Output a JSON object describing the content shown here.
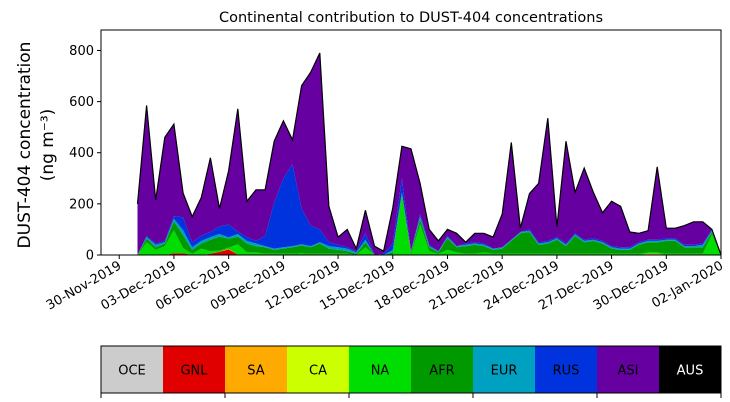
{
  "chart_data": {
    "type": "area",
    "title": "Continental contribution to DUST-404 concentrations",
    "ylabel_line1": "DUST-404 concentration",
    "ylabel_line2": "(ng m⁻³)",
    "ylim": [
      0,
      880
    ],
    "xlim": [
      "2019-11-29",
      "2020-01-02"
    ],
    "yticks": [
      0,
      200,
      400,
      600,
      800
    ],
    "xticks": [
      "30-Nov-2019",
      "03-Dec-2019",
      "06-Dec-2019",
      "09-Dec-2019",
      "12-Dec-2019",
      "15-Dec-2019",
      "18-Dec-2019",
      "21-Dec-2019",
      "24-Dec-2019",
      "27-Dec-2019",
      "30-Dec-2019",
      "02-Jan-2020"
    ],
    "x": [
      "2019-12-01",
      "2019-12-01 12:00",
      "2019-12-02",
      "2019-12-02 12:00",
      "2019-12-03",
      "2019-12-03 12:00",
      "2019-12-04",
      "2019-12-04 12:00",
      "2019-12-05",
      "2019-12-05 12:00",
      "2019-12-06",
      "2019-12-06 12:00",
      "2019-12-07",
      "2019-12-07 12:00",
      "2019-12-08",
      "2019-12-08 12:00",
      "2019-12-09",
      "2019-12-09 12:00",
      "2019-12-10",
      "2019-12-10 12:00",
      "2019-12-11",
      "2019-12-11 12:00",
      "2019-12-12",
      "2019-12-12 12:00",
      "2019-12-13",
      "2019-12-13 12:00",
      "2019-12-14",
      "2019-12-14 12:00",
      "2019-12-15",
      "2019-12-15 12:00",
      "2019-12-16",
      "2019-12-16 12:00",
      "2019-12-17",
      "2019-12-17 12:00",
      "2019-12-18",
      "2019-12-18 12:00",
      "2019-12-19",
      "2019-12-19 12:00",
      "2019-12-20",
      "2019-12-20 12:00",
      "2019-12-21",
      "2019-12-21 12:00",
      "2019-12-22",
      "2019-12-22 12:00",
      "2019-12-23",
      "2019-12-23 12:00",
      "2019-12-24",
      "2019-12-24 12:00",
      "2019-12-25",
      "2019-12-25 12:00",
      "2019-12-26",
      "2019-12-26 12:00",
      "2019-12-27",
      "2019-12-27 12:00",
      "2019-12-28",
      "2019-12-28 12:00",
      "2019-12-29",
      "2019-12-29 12:00",
      "2019-12-30",
      "2019-12-30 12:00",
      "2019-12-31",
      "2019-12-31 12:00",
      "2020-01-01",
      "2020-01-01 12:00",
      "2020-01-02"
    ],
    "series": [
      {
        "name": "OCE",
        "color": "#cccccc",
        "values": [
          0,
          0,
          0,
          0,
          2,
          2,
          0,
          0,
          0,
          2,
          2,
          0,
          0,
          0,
          0,
          0,
          0,
          0,
          2,
          0,
          0,
          0,
          0,
          0,
          0,
          0,
          0,
          0,
          0,
          0,
          0,
          0,
          0,
          0,
          0,
          0,
          0,
          0,
          0,
          0,
          0,
          0,
          0,
          0,
          0,
          0,
          0,
          0,
          0,
          0,
          0,
          0,
          0,
          0,
          0,
          0,
          0,
          0,
          0,
          0,
          0,
          0,
          0,
          0,
          0
        ]
      },
      {
        "name": "GNL",
        "color": "#e00000",
        "values": [
          0,
          0,
          0,
          0,
          5,
          5,
          0,
          0,
          5,
          10,
          20,
          2,
          0,
          0,
          0,
          0,
          0,
          0,
          0,
          0,
          0,
          0,
          0,
          0,
          0,
          0,
          0,
          0,
          0,
          0,
          0,
          0,
          0,
          0,
          0,
          0,
          0,
          0,
          0,
          0,
          0,
          0,
          0,
          0,
          0,
          0,
          0,
          0,
          0,
          0,
          0,
          0,
          0,
          0,
          0,
          0,
          3,
          3,
          0,
          0,
          0,
          0,
          0,
          0,
          0
        ]
      },
      {
        "name": "SA",
        "color": "#ffaa00",
        "values": [
          0,
          0,
          0,
          0,
          0,
          0,
          0,
          0,
          0,
          0,
          2,
          0,
          0,
          0,
          0,
          0,
          0,
          0,
          0,
          0,
          0,
          0,
          0,
          0,
          0,
          0,
          0,
          0,
          0,
          0,
          0,
          0,
          0,
          0,
          0,
          0,
          0,
          0,
          0,
          0,
          0,
          0,
          0,
          0,
          0,
          0,
          0,
          0,
          0,
          0,
          0,
          0,
          0,
          0,
          0,
          0,
          2,
          2,
          0,
          0,
          0,
          0,
          0,
          0,
          0
        ]
      },
      {
        "name": "CA",
        "color": "#ccff00",
        "values": [
          0,
          0,
          0,
          0,
          0,
          0,
          0,
          0,
          0,
          0,
          0,
          0,
          0,
          0,
          0,
          0,
          0,
          0,
          0,
          0,
          0,
          0,
          0,
          0,
          0,
          0,
          0,
          0,
          0,
          0,
          0,
          0,
          0,
          0,
          0,
          0,
          0,
          0,
          0,
          0,
          0,
          0,
          0,
          0,
          0,
          0,
          0,
          0,
          0,
          0,
          0,
          0,
          0,
          0,
          0,
          0,
          0,
          0,
          0,
          0,
          0,
          0,
          0,
          0,
          0
        ]
      },
      {
        "name": "NA",
        "color": "#00dd00",
        "values": [
          0,
          50,
          20,
          35,
          90,
          20,
          5,
          25,
          10,
          5,
          5,
          40,
          10,
          10,
          5,
          5,
          5,
          5,
          5,
          5,
          5,
          5,
          5,
          5,
          0,
          30,
          0,
          0,
          0,
          230,
          0,
          120,
          15,
          5,
          20,
          10,
          5,
          5,
          10,
          5,
          5,
          5,
          5,
          5,
          5,
          5,
          5,
          5,
          5,
          5,
          5,
          5,
          5,
          5,
          5,
          5,
          5,
          5,
          5,
          5,
          5,
          5,
          5,
          80,
          0
        ]
      },
      {
        "name": "AFR",
        "color": "#009900",
        "values": [
          0,
          15,
          10,
          10,
          35,
          50,
          15,
          20,
          45,
          55,
          35,
          30,
          35,
          25,
          25,
          15,
          20,
          25,
          30,
          25,
          40,
          20,
          15,
          10,
          5,
          20,
          0,
          0,
          10,
          10,
          10,
          20,
          15,
          5,
          45,
          20,
          30,
          35,
          25,
          15,
          20,
          50,
          80,
          85,
          35,
          40,
          55,
          30,
          70,
          45,
          50,
          40,
          20,
          15,
          15,
          35,
          40,
          40,
          50,
          50,
          25,
          25,
          25,
          10,
          0
        ]
      },
      {
        "name": "EUR",
        "color": "#00a0c0",
        "values": [
          0,
          5,
          10,
          5,
          10,
          20,
          10,
          10,
          10,
          10,
          5,
          10,
          10,
          10,
          5,
          5,
          5,
          5,
          5,
          5,
          5,
          10,
          10,
          10,
          5,
          10,
          0,
          0,
          10,
          5,
          5,
          10,
          5,
          5,
          5,
          5,
          5,
          5,
          5,
          5,
          5,
          5,
          5,
          5,
          5,
          5,
          5,
          5,
          5,
          5,
          5,
          5,
          5,
          5,
          5,
          5,
          5,
          5,
          5,
          5,
          5,
          5,
          10,
          5,
          0
        ]
      },
      {
        "name": "RUS",
        "color": "#0033dd",
        "values": [
          0,
          5,
          5,
          5,
          10,
          50,
          20,
          20,
          20,
          30,
          50,
          10,
          15,
          10,
          40,
          180,
          270,
          320,
          140,
          80,
          50,
          15,
          10,
          5,
          5,
          25,
          0,
          5,
          25,
          55,
          0,
          10,
          5,
          0,
          5,
          0,
          5,
          5,
          5,
          0,
          0,
          0,
          0,
          5,
          5,
          5,
          5,
          5,
          5,
          5,
          5,
          5,
          5,
          5,
          5,
          5,
          5,
          5,
          5,
          5,
          5,
          5,
          5,
          5,
          0
        ]
      },
      {
        "name": "ASI",
        "color": "#6600a0",
        "values": [
          200,
          510,
          170,
          405,
          360,
          95,
          100,
          150,
          290,
          70,
          210,
          480,
          140,
          200,
          180,
          240,
          225,
          95,
          480,
          600,
          690,
          140,
          30,
          70,
          10,
          90,
          35,
          10,
          140,
          125,
          400,
          120,
          60,
          40,
          25,
          50,
          5,
          35,
          40,
          45,
          130,
          380,
          15,
          140,
          230,
          480,
          40,
          400,
          160,
          280,
          180,
          110,
          175,
          160,
          60,
          35,
          35,
          285,
          40,
          40,
          75,
          90,
          85,
          0,
          0
        ]
      },
      {
        "name": "AUS",
        "color": "#000000",
        "values": [
          0,
          0,
          0,
          0,
          0,
          0,
          0,
          0,
          0,
          0,
          0,
          0,
          0,
          0,
          0,
          0,
          0,
          0,
          0,
          0,
          0,
          0,
          0,
          0,
          0,
          0,
          0,
          0,
          0,
          0,
          0,
          0,
          0,
          0,
          0,
          0,
          0,
          0,
          0,
          0,
          0,
          0,
          0,
          0,
          0,
          0,
          0,
          0,
          0,
          0,
          0,
          0,
          0,
          0,
          0,
          0,
          0,
          0,
          0,
          0,
          0,
          0,
          0,
          0,
          0
        ]
      }
    ]
  }
}
